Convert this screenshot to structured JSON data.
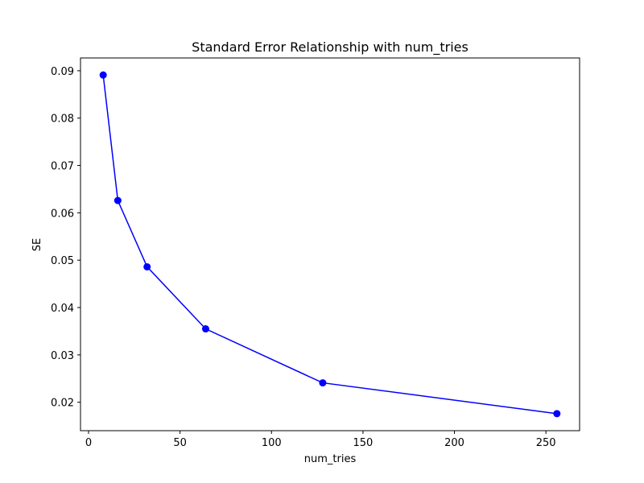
{
  "chart_data": {
    "type": "line",
    "title": "Standard Error Relationship with num_tries",
    "x_label": "num_tries",
    "y_label": "SE",
    "x": [
      8,
      16,
      32,
      64,
      128,
      256
    ],
    "series": [
      {
        "name": "SE",
        "color": "#0000ff",
        "values": [
          0.0891,
          0.0626,
          0.0486,
          0.0355,
          0.0241,
          0.0176
        ]
      }
    ],
    "xlim": [
      -4.4,
      268.4
    ],
    "xticks": [
      0,
      50,
      100,
      150,
      200,
      250
    ],
    "ylim": [
      0.014,
      0.0927
    ],
    "yticks": [
      0.02,
      0.03,
      0.04,
      0.05,
      0.06,
      0.07,
      0.08,
      0.09
    ],
    "grid": false,
    "markers": true
  }
}
